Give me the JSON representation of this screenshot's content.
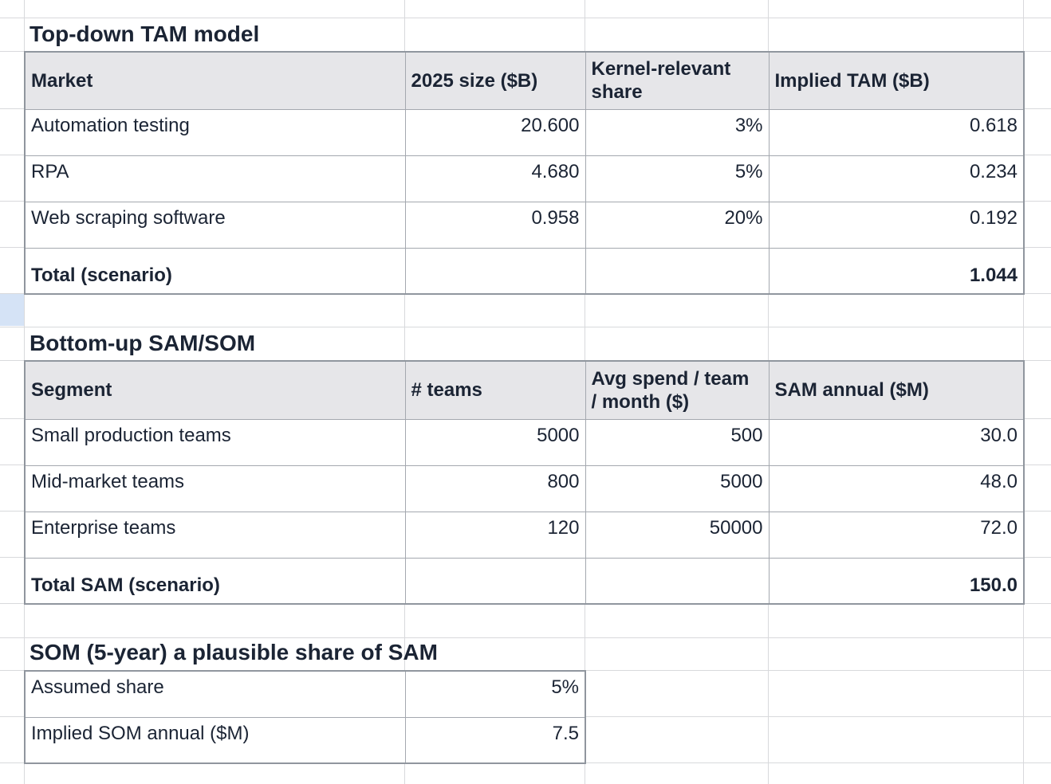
{
  "tam": {
    "title": "Top-down TAM model",
    "headers": [
      "Market",
      "2025 size ($B)",
      "Kernel-relevant share",
      "Implied TAM ($B)"
    ],
    "rows": [
      [
        "Automation testing",
        "20.600",
        "3%",
        "0.618"
      ],
      [
        "RPA",
        "4.680",
        "5%",
        "0.234"
      ],
      [
        "Web scraping software",
        "0.958",
        "20%",
        "0.192"
      ]
    ],
    "total_label": "Total (scenario)",
    "total_value": "1.044"
  },
  "sam": {
    "title": "Bottom-up SAM/SOM",
    "headers": [
      "Segment",
      "# teams",
      "Avg spend / team / month ($)",
      "SAM annual ($M)"
    ],
    "rows": [
      [
        "Small production teams",
        "5000",
        "500",
        "30.0"
      ],
      [
        "Mid-market teams",
        "800",
        "5000",
        "48.0"
      ],
      [
        "Enterprise teams",
        "120",
        "50000",
        "72.0"
      ]
    ],
    "total_label": "Total SAM (scenario)",
    "total_value": "150.0"
  },
  "som": {
    "title": "SOM (5-year) a plausible share of SAM",
    "rows": [
      [
        "Assumed share",
        "5%"
      ],
      [
        "Implied SOM annual ($M)",
        "7.5"
      ]
    ]
  },
  "colors": {
    "text": "#1b2434",
    "header_fill": "#e6e6e9",
    "selected_cell": "#d5e3f6",
    "table_border": "#a4a8af",
    "table_border_outer": "#90969e",
    "grid_line": "#d8d9dc",
    "sheet_bg": "#ffffff"
  }
}
